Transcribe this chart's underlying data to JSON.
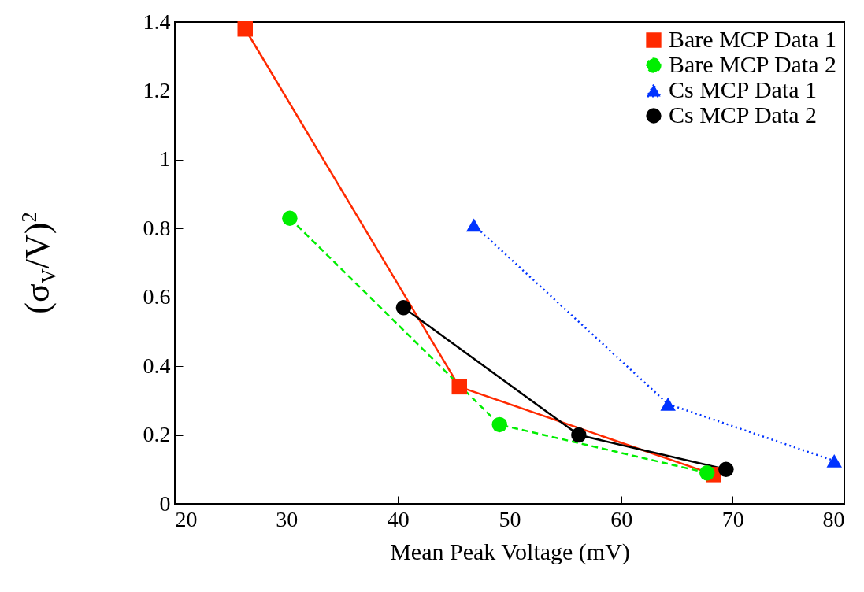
{
  "chart_data": {
    "type": "line",
    "xlabel": "Mean Peak Voltage (mV)",
    "ylabel": "(σ$_{V}$/V)$^{2}$",
    "xlim": [
      20,
      80
    ],
    "xticks": [
      20,
      30,
      40,
      50,
      60,
      70,
      80
    ],
    "ylim": [
      0,
      1.4
    ],
    "yticks": [
      0,
      0.2,
      0.4,
      0.6,
      0.8,
      1,
      1.2,
      1.4
    ],
    "legend": "top right",
    "grid": false,
    "series": [
      {
        "name": "Bare MCP Data 1",
        "color": "#ff2a00",
        "marker": "square",
        "line_style": "solid",
        "x": [
          26.3,
          45.5,
          68.3
        ],
        "values": [
          1.38,
          0.34,
          0.085
        ]
      },
      {
        "name": "Bare MCP Data 2",
        "color": "#00ee00",
        "marker": "circle",
        "line_style": "dashed",
        "x": [
          30.3,
          49.1,
          67.7
        ],
        "values": [
          0.83,
          0.23,
          0.09
        ]
      },
      {
        "name": "Cs MCP Data 1",
        "color": "#0033ff",
        "marker": "triangle",
        "line_style": "dotted",
        "x": [
          46.8,
          64.2,
          79.1
        ],
        "values": [
          0.81,
          0.29,
          0.125
        ]
      },
      {
        "name": "Cs MCP Data 2",
        "color": "#000000",
        "marker": "circle",
        "line_style": "solid",
        "x": [
          40.5,
          56.2,
          69.4
        ],
        "values": [
          0.57,
          0.2,
          0.1
        ]
      }
    ]
  }
}
